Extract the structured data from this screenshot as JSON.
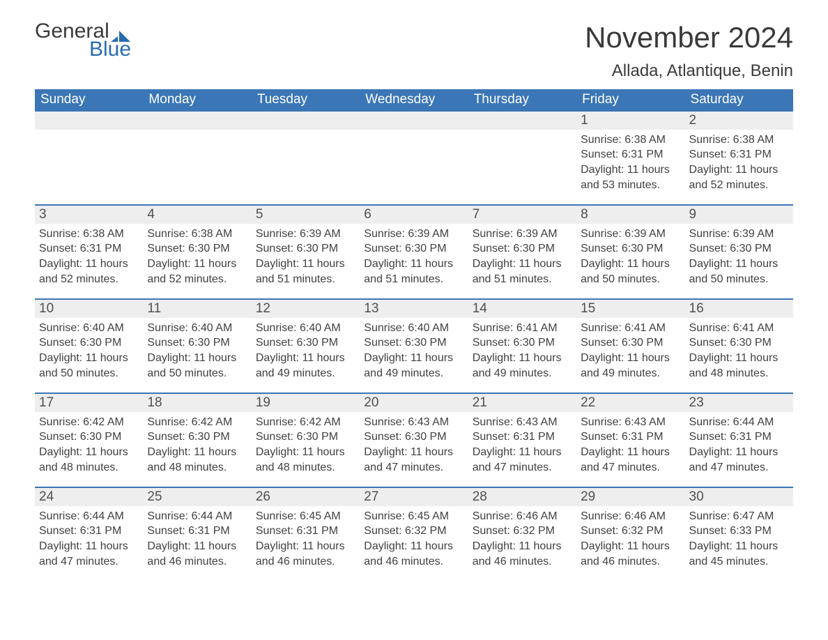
{
  "logo": {
    "word1": "General",
    "word2": "Blue",
    "text_color": "#3a3a3a",
    "accent_color": "#2a6bb0",
    "icon_color": "#2a6bb0"
  },
  "header": {
    "month_title": "November 2024",
    "location": "Allada, Atlantique, Benin",
    "month_title_fontsize": 42,
    "location_fontsize": 24,
    "text_color": "#3a3a3a"
  },
  "calendar": {
    "header_bg": "#3b76b6",
    "header_text_color": "#ffffff",
    "daynum_bg": "#eeeeee",
    "daynum_border_top": "#3b76b6",
    "body_text_color": "#404040",
    "columns": [
      "Sunday",
      "Monday",
      "Tuesday",
      "Wednesday",
      "Thursday",
      "Friday",
      "Saturday"
    ],
    "rows": [
      [
        {
          "empty": true
        },
        {
          "empty": true
        },
        {
          "empty": true
        },
        {
          "empty": true
        },
        {
          "empty": true
        },
        {
          "day": "1",
          "sunrise": "Sunrise: 6:38 AM",
          "sunset": "Sunset: 6:31 PM",
          "dl1": "Daylight: 11 hours",
          "dl2": "and 53 minutes."
        },
        {
          "day": "2",
          "sunrise": "Sunrise: 6:38 AM",
          "sunset": "Sunset: 6:31 PM",
          "dl1": "Daylight: 11 hours",
          "dl2": "and 52 minutes."
        }
      ],
      [
        {
          "day": "3",
          "sunrise": "Sunrise: 6:38 AM",
          "sunset": "Sunset: 6:31 PM",
          "dl1": "Daylight: 11 hours",
          "dl2": "and 52 minutes."
        },
        {
          "day": "4",
          "sunrise": "Sunrise: 6:38 AM",
          "sunset": "Sunset: 6:30 PM",
          "dl1": "Daylight: 11 hours",
          "dl2": "and 52 minutes."
        },
        {
          "day": "5",
          "sunrise": "Sunrise: 6:39 AM",
          "sunset": "Sunset: 6:30 PM",
          "dl1": "Daylight: 11 hours",
          "dl2": "and 51 minutes."
        },
        {
          "day": "6",
          "sunrise": "Sunrise: 6:39 AM",
          "sunset": "Sunset: 6:30 PM",
          "dl1": "Daylight: 11 hours",
          "dl2": "and 51 minutes."
        },
        {
          "day": "7",
          "sunrise": "Sunrise: 6:39 AM",
          "sunset": "Sunset: 6:30 PM",
          "dl1": "Daylight: 11 hours",
          "dl2": "and 51 minutes."
        },
        {
          "day": "8",
          "sunrise": "Sunrise: 6:39 AM",
          "sunset": "Sunset: 6:30 PM",
          "dl1": "Daylight: 11 hours",
          "dl2": "and 50 minutes."
        },
        {
          "day": "9",
          "sunrise": "Sunrise: 6:39 AM",
          "sunset": "Sunset: 6:30 PM",
          "dl1": "Daylight: 11 hours",
          "dl2": "and 50 minutes."
        }
      ],
      [
        {
          "day": "10",
          "sunrise": "Sunrise: 6:40 AM",
          "sunset": "Sunset: 6:30 PM",
          "dl1": "Daylight: 11 hours",
          "dl2": "and 50 minutes."
        },
        {
          "day": "11",
          "sunrise": "Sunrise: 6:40 AM",
          "sunset": "Sunset: 6:30 PM",
          "dl1": "Daylight: 11 hours",
          "dl2": "and 50 minutes."
        },
        {
          "day": "12",
          "sunrise": "Sunrise: 6:40 AM",
          "sunset": "Sunset: 6:30 PM",
          "dl1": "Daylight: 11 hours",
          "dl2": "and 49 minutes."
        },
        {
          "day": "13",
          "sunrise": "Sunrise: 6:40 AM",
          "sunset": "Sunset: 6:30 PM",
          "dl1": "Daylight: 11 hours",
          "dl2": "and 49 minutes."
        },
        {
          "day": "14",
          "sunrise": "Sunrise: 6:41 AM",
          "sunset": "Sunset: 6:30 PM",
          "dl1": "Daylight: 11 hours",
          "dl2": "and 49 minutes."
        },
        {
          "day": "15",
          "sunrise": "Sunrise: 6:41 AM",
          "sunset": "Sunset: 6:30 PM",
          "dl1": "Daylight: 11 hours",
          "dl2": "and 49 minutes."
        },
        {
          "day": "16",
          "sunrise": "Sunrise: 6:41 AM",
          "sunset": "Sunset: 6:30 PM",
          "dl1": "Daylight: 11 hours",
          "dl2": "and 48 minutes."
        }
      ],
      [
        {
          "day": "17",
          "sunrise": "Sunrise: 6:42 AM",
          "sunset": "Sunset: 6:30 PM",
          "dl1": "Daylight: 11 hours",
          "dl2": "and 48 minutes."
        },
        {
          "day": "18",
          "sunrise": "Sunrise: 6:42 AM",
          "sunset": "Sunset: 6:30 PM",
          "dl1": "Daylight: 11 hours",
          "dl2": "and 48 minutes."
        },
        {
          "day": "19",
          "sunrise": "Sunrise: 6:42 AM",
          "sunset": "Sunset: 6:30 PM",
          "dl1": "Daylight: 11 hours",
          "dl2": "and 48 minutes."
        },
        {
          "day": "20",
          "sunrise": "Sunrise: 6:43 AM",
          "sunset": "Sunset: 6:30 PM",
          "dl1": "Daylight: 11 hours",
          "dl2": "and 47 minutes."
        },
        {
          "day": "21",
          "sunrise": "Sunrise: 6:43 AM",
          "sunset": "Sunset: 6:31 PM",
          "dl1": "Daylight: 11 hours",
          "dl2": "and 47 minutes."
        },
        {
          "day": "22",
          "sunrise": "Sunrise: 6:43 AM",
          "sunset": "Sunset: 6:31 PM",
          "dl1": "Daylight: 11 hours",
          "dl2": "and 47 minutes."
        },
        {
          "day": "23",
          "sunrise": "Sunrise: 6:44 AM",
          "sunset": "Sunset: 6:31 PM",
          "dl1": "Daylight: 11 hours",
          "dl2": "and 47 minutes."
        }
      ],
      [
        {
          "day": "24",
          "sunrise": "Sunrise: 6:44 AM",
          "sunset": "Sunset: 6:31 PM",
          "dl1": "Daylight: 11 hours",
          "dl2": "and 47 minutes."
        },
        {
          "day": "25",
          "sunrise": "Sunrise: 6:44 AM",
          "sunset": "Sunset: 6:31 PM",
          "dl1": "Daylight: 11 hours",
          "dl2": "and 46 minutes."
        },
        {
          "day": "26",
          "sunrise": "Sunrise: 6:45 AM",
          "sunset": "Sunset: 6:31 PM",
          "dl1": "Daylight: 11 hours",
          "dl2": "and 46 minutes."
        },
        {
          "day": "27",
          "sunrise": "Sunrise: 6:45 AM",
          "sunset": "Sunset: 6:32 PM",
          "dl1": "Daylight: 11 hours",
          "dl2": "and 46 minutes."
        },
        {
          "day": "28",
          "sunrise": "Sunrise: 6:46 AM",
          "sunset": "Sunset: 6:32 PM",
          "dl1": "Daylight: 11 hours",
          "dl2": "and 46 minutes."
        },
        {
          "day": "29",
          "sunrise": "Sunrise: 6:46 AM",
          "sunset": "Sunset: 6:32 PM",
          "dl1": "Daylight: 11 hours",
          "dl2": "and 46 minutes."
        },
        {
          "day": "30",
          "sunrise": "Sunrise: 6:47 AM",
          "sunset": "Sunset: 6:33 PM",
          "dl1": "Daylight: 11 hours",
          "dl2": "and 45 minutes."
        }
      ]
    ]
  }
}
